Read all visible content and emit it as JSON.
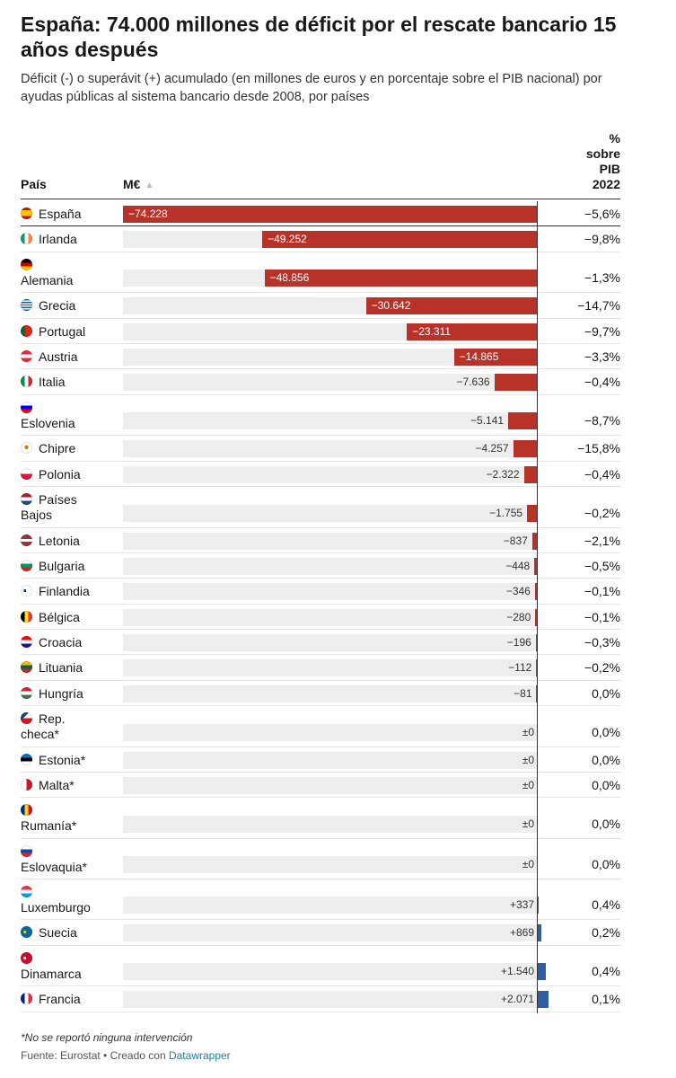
{
  "title": "España: 74.000 millones de déficit por el rescate bancario 15 años después",
  "subtitle": "Déficit (-) o superávit (+) acumulado (en millones de euros y en porcentaje sobre el PIB nacional) por ayudas públicas al sistema bancario desde 2008, por países",
  "table_header": {
    "country": "País",
    "value": "M€",
    "sort_icon": "triangle-up-icon",
    "pct_lines": [
      "%",
      "sobre",
      "PIB",
      "2022"
    ]
  },
  "colors": {
    "negative": "#b73229",
    "positive": "#2f5da0",
    "track": "#eeeeee"
  },
  "chart_data": {
    "type": "bar",
    "orientation": "horizontal",
    "xlim": [
      -74228,
      2900
    ],
    "categories": [
      "España",
      "Irlanda",
      "Alemania",
      "Grecia",
      "Portugal",
      "Austria",
      "Italia",
      "Eslovenia",
      "Chipre",
      "Polonia",
      "Países Bajos",
      "Letonia",
      "Bulgaria",
      "Finlandia",
      "Bélgica",
      "Croacia",
      "Lituania",
      "Hungría",
      "Rep. checa*",
      "Estonia*",
      "Malta*",
      "Rumanía*",
      "Eslovaquia*",
      "Luxemburgo",
      "Suecia",
      "Dinamarca",
      "Francia"
    ],
    "rows": [
      {
        "country": "España",
        "value": -74228,
        "label": "−74.228",
        "pct": "−5,6%",
        "flag": "es",
        "h": 28
      },
      {
        "country": "Irlanda",
        "value": -49252,
        "label": "−49.252",
        "pct": "−9,8%",
        "flag": "ie",
        "h": 29
      },
      {
        "country": "Alemania",
        "value": -48856,
        "label": "−48.856",
        "pct": "−1,3%",
        "flag": "de",
        "h": 45
      },
      {
        "country": "Grecia",
        "value": -30642,
        "label": "−30.642",
        "pct": "−14,7%",
        "flag": "gr",
        "h": 29
      },
      {
        "country": "Portugal",
        "value": -23311,
        "label": "−23.311",
        "pct": "−9,7%",
        "flag": "pt",
        "h": 28
      },
      {
        "country": "Austria",
        "value": -14865,
        "label": "−14.865",
        "pct": "−3,3%",
        "flag": "at",
        "h": 28
      },
      {
        "country": "Italia",
        "value": -7636,
        "label": "−7.636",
        "pct": "−0,4%",
        "flag": "it",
        "h": 29
      },
      {
        "country": "Eslovenia",
        "value": -5141,
        "label": "−5.141",
        "pct": "−8,7%",
        "flag": "si",
        "h": 45
      },
      {
        "country": "Chipre",
        "value": -4257,
        "label": "−4.257",
        "pct": "−15,8%",
        "flag": "cy",
        "h": 29
      },
      {
        "country": "Polonia",
        "value": -2322,
        "label": "−2.322",
        "pct": "−0,4%",
        "flag": "pl",
        "h": 28
      },
      {
        "country": "Países Bajos",
        "value": -1755,
        "label": "−1.755",
        "pct": "−0,2%",
        "flag": "nl",
        "h": 46
      },
      {
        "country": "Letonia",
        "value": -837,
        "label": "−837",
        "pct": "−2,1%",
        "flag": "lv",
        "h": 28
      },
      {
        "country": "Bulgaria",
        "value": -448,
        "label": "−448",
        "pct": "−0,5%",
        "flag": "bg",
        "h": 28
      },
      {
        "country": "Finlandia",
        "value": -346,
        "label": "−346",
        "pct": "−0,1%",
        "flag": "fi",
        "h": 29
      },
      {
        "country": "Bélgica",
        "value": -280,
        "label": "−280",
        "pct": "−0,1%",
        "flag": "be",
        "h": 28
      },
      {
        "country": "Croacia",
        "value": -196,
        "label": "−196",
        "pct": "−0,3%",
        "flag": "hr",
        "h": 28
      },
      {
        "country": "Lituania",
        "value": -112,
        "label": "−112",
        "pct": "−0,2%",
        "flag": "lt",
        "h": 29
      },
      {
        "country": "Hungría",
        "value": -81,
        "label": "−81",
        "pct": "0,0%",
        "flag": "hu",
        "h": 28
      },
      {
        "country": "Rep. checa*",
        "value": 0,
        "label": "±0",
        "pct": "0,0%",
        "flag": "cz",
        "h": 46
      },
      {
        "country": "Estonia*",
        "value": 0,
        "label": "±0",
        "pct": "0,0%",
        "flag": "ee",
        "h": 28
      },
      {
        "country": "Malta*",
        "value": 0,
        "label": "±0",
        "pct": "0,0%",
        "flag": "mt",
        "h": 28
      },
      {
        "country": "Rumanía*",
        "value": 0,
        "label": "±0",
        "pct": "0,0%",
        "flag": "ro",
        "h": 46
      },
      {
        "country": "Eslovaquia*",
        "value": 0,
        "label": "±0",
        "pct": "0,0%",
        "flag": "sk",
        "h": 45
      },
      {
        "country": "Luxemburgo",
        "value": 337,
        "label": "+337",
        "pct": "0,4%",
        "flag": "lu",
        "h": 45
      },
      {
        "country": "Suecia",
        "value": 869,
        "label": "+869",
        "pct": "0,2%",
        "flag": "se",
        "h": 29
      },
      {
        "country": "Dinamarca",
        "value": 1540,
        "label": "+1.540",
        "pct": "0,4%",
        "flag": "dk",
        "h": 45
      },
      {
        "country": "Francia",
        "value": 2071,
        "label": "+2.071",
        "pct": "0,1%",
        "flag": "fr",
        "h": 29
      }
    ]
  },
  "footnote": "*No se reportó ninguna intervención",
  "source": {
    "prefix": "Fuente: Eurostat • Creado con ",
    "link": "Datawrapper"
  }
}
